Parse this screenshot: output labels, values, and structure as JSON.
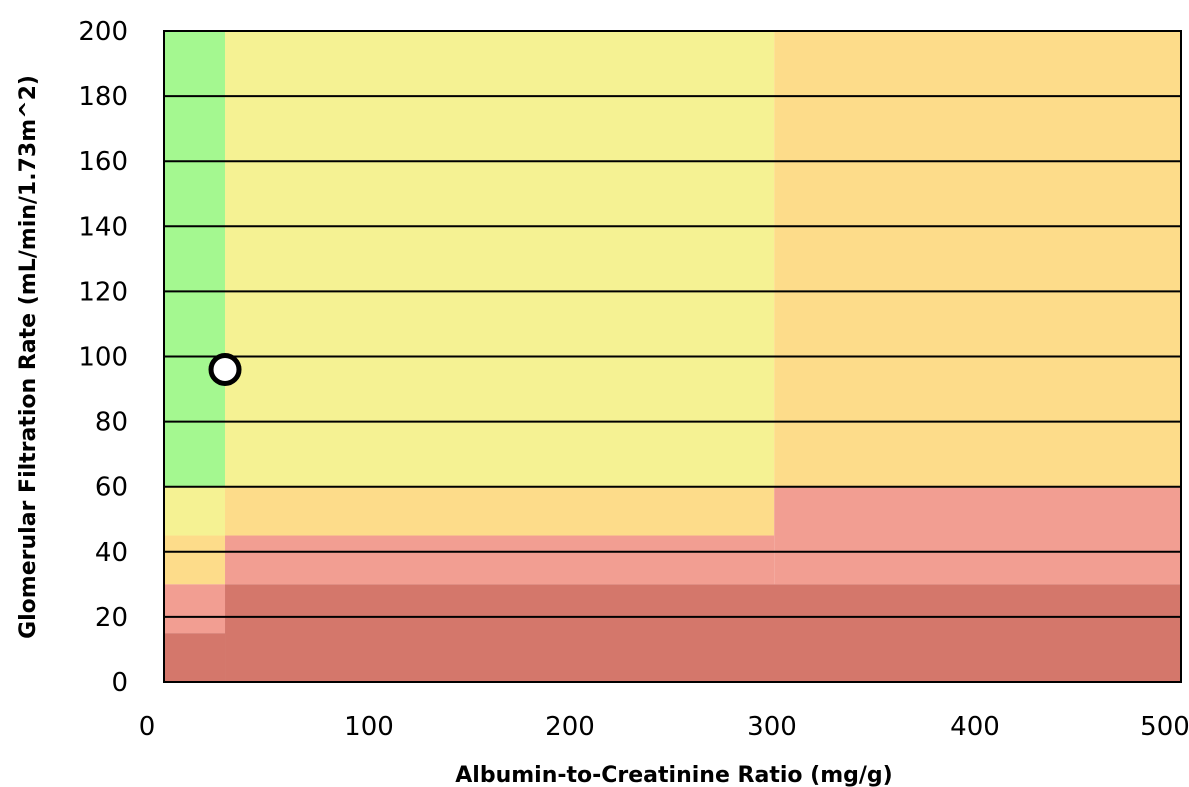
{
  "chart_data": {
    "type": "scatter",
    "title": "",
    "xlabel": "Albumin-to-Creatinine Ratio (mg/g)",
    "ylabel": "Glomerular Filtration Rate (mL/min/1.73m^2)",
    "xlim": [
      0,
      500
    ],
    "ylim": [
      0,
      200
    ],
    "xticks": [
      0,
      100,
      200,
      300,
      400,
      500
    ],
    "yticks": [
      0,
      20,
      40,
      60,
      80,
      100,
      120,
      140,
      160,
      180,
      200
    ],
    "grid": "horizontal",
    "background_zones": [
      {
        "risk": "low",
        "color": "#a4f890",
        "x": [
          0,
          30
        ],
        "y": [
          60,
          200
        ]
      },
      {
        "risk": "moderate",
        "color": "#f5f293",
        "x": [
          30,
          300
        ],
        "y": [
          60,
          200
        ]
      },
      {
        "risk": "moderate",
        "color": "#f5f293",
        "x": [
          0,
          30
        ],
        "y": [
          45,
          60
        ]
      },
      {
        "risk": "high",
        "color": "#fddc8a",
        "x": [
          300,
          500
        ],
        "y": [
          60,
          200
        ]
      },
      {
        "risk": "high",
        "color": "#fddc8a",
        "x": [
          30,
          300
        ],
        "y": [
          45,
          60
        ]
      },
      {
        "risk": "high",
        "color": "#fddc8a",
        "x": [
          0,
          30
        ],
        "y": [
          30,
          45
        ]
      },
      {
        "risk": "very-high",
        "color": "#f29e92",
        "x": [
          300,
          500
        ],
        "y": [
          30,
          60
        ]
      },
      {
        "risk": "very-high",
        "color": "#f29e92",
        "x": [
          30,
          300
        ],
        "y": [
          30,
          45
        ]
      },
      {
        "risk": "very-high",
        "color": "#f29e92",
        "x": [
          0,
          30
        ],
        "y": [
          15,
          30
        ]
      },
      {
        "risk": "highest",
        "color": "#d4776b",
        "x": [
          30,
          500
        ],
        "y": [
          0,
          30
        ]
      },
      {
        "risk": "highest",
        "color": "#d4776b",
        "x": [
          0,
          30
        ],
        "y": [
          0,
          15
        ]
      }
    ],
    "points": [
      {
        "x": 30,
        "y": 96
      }
    ]
  }
}
